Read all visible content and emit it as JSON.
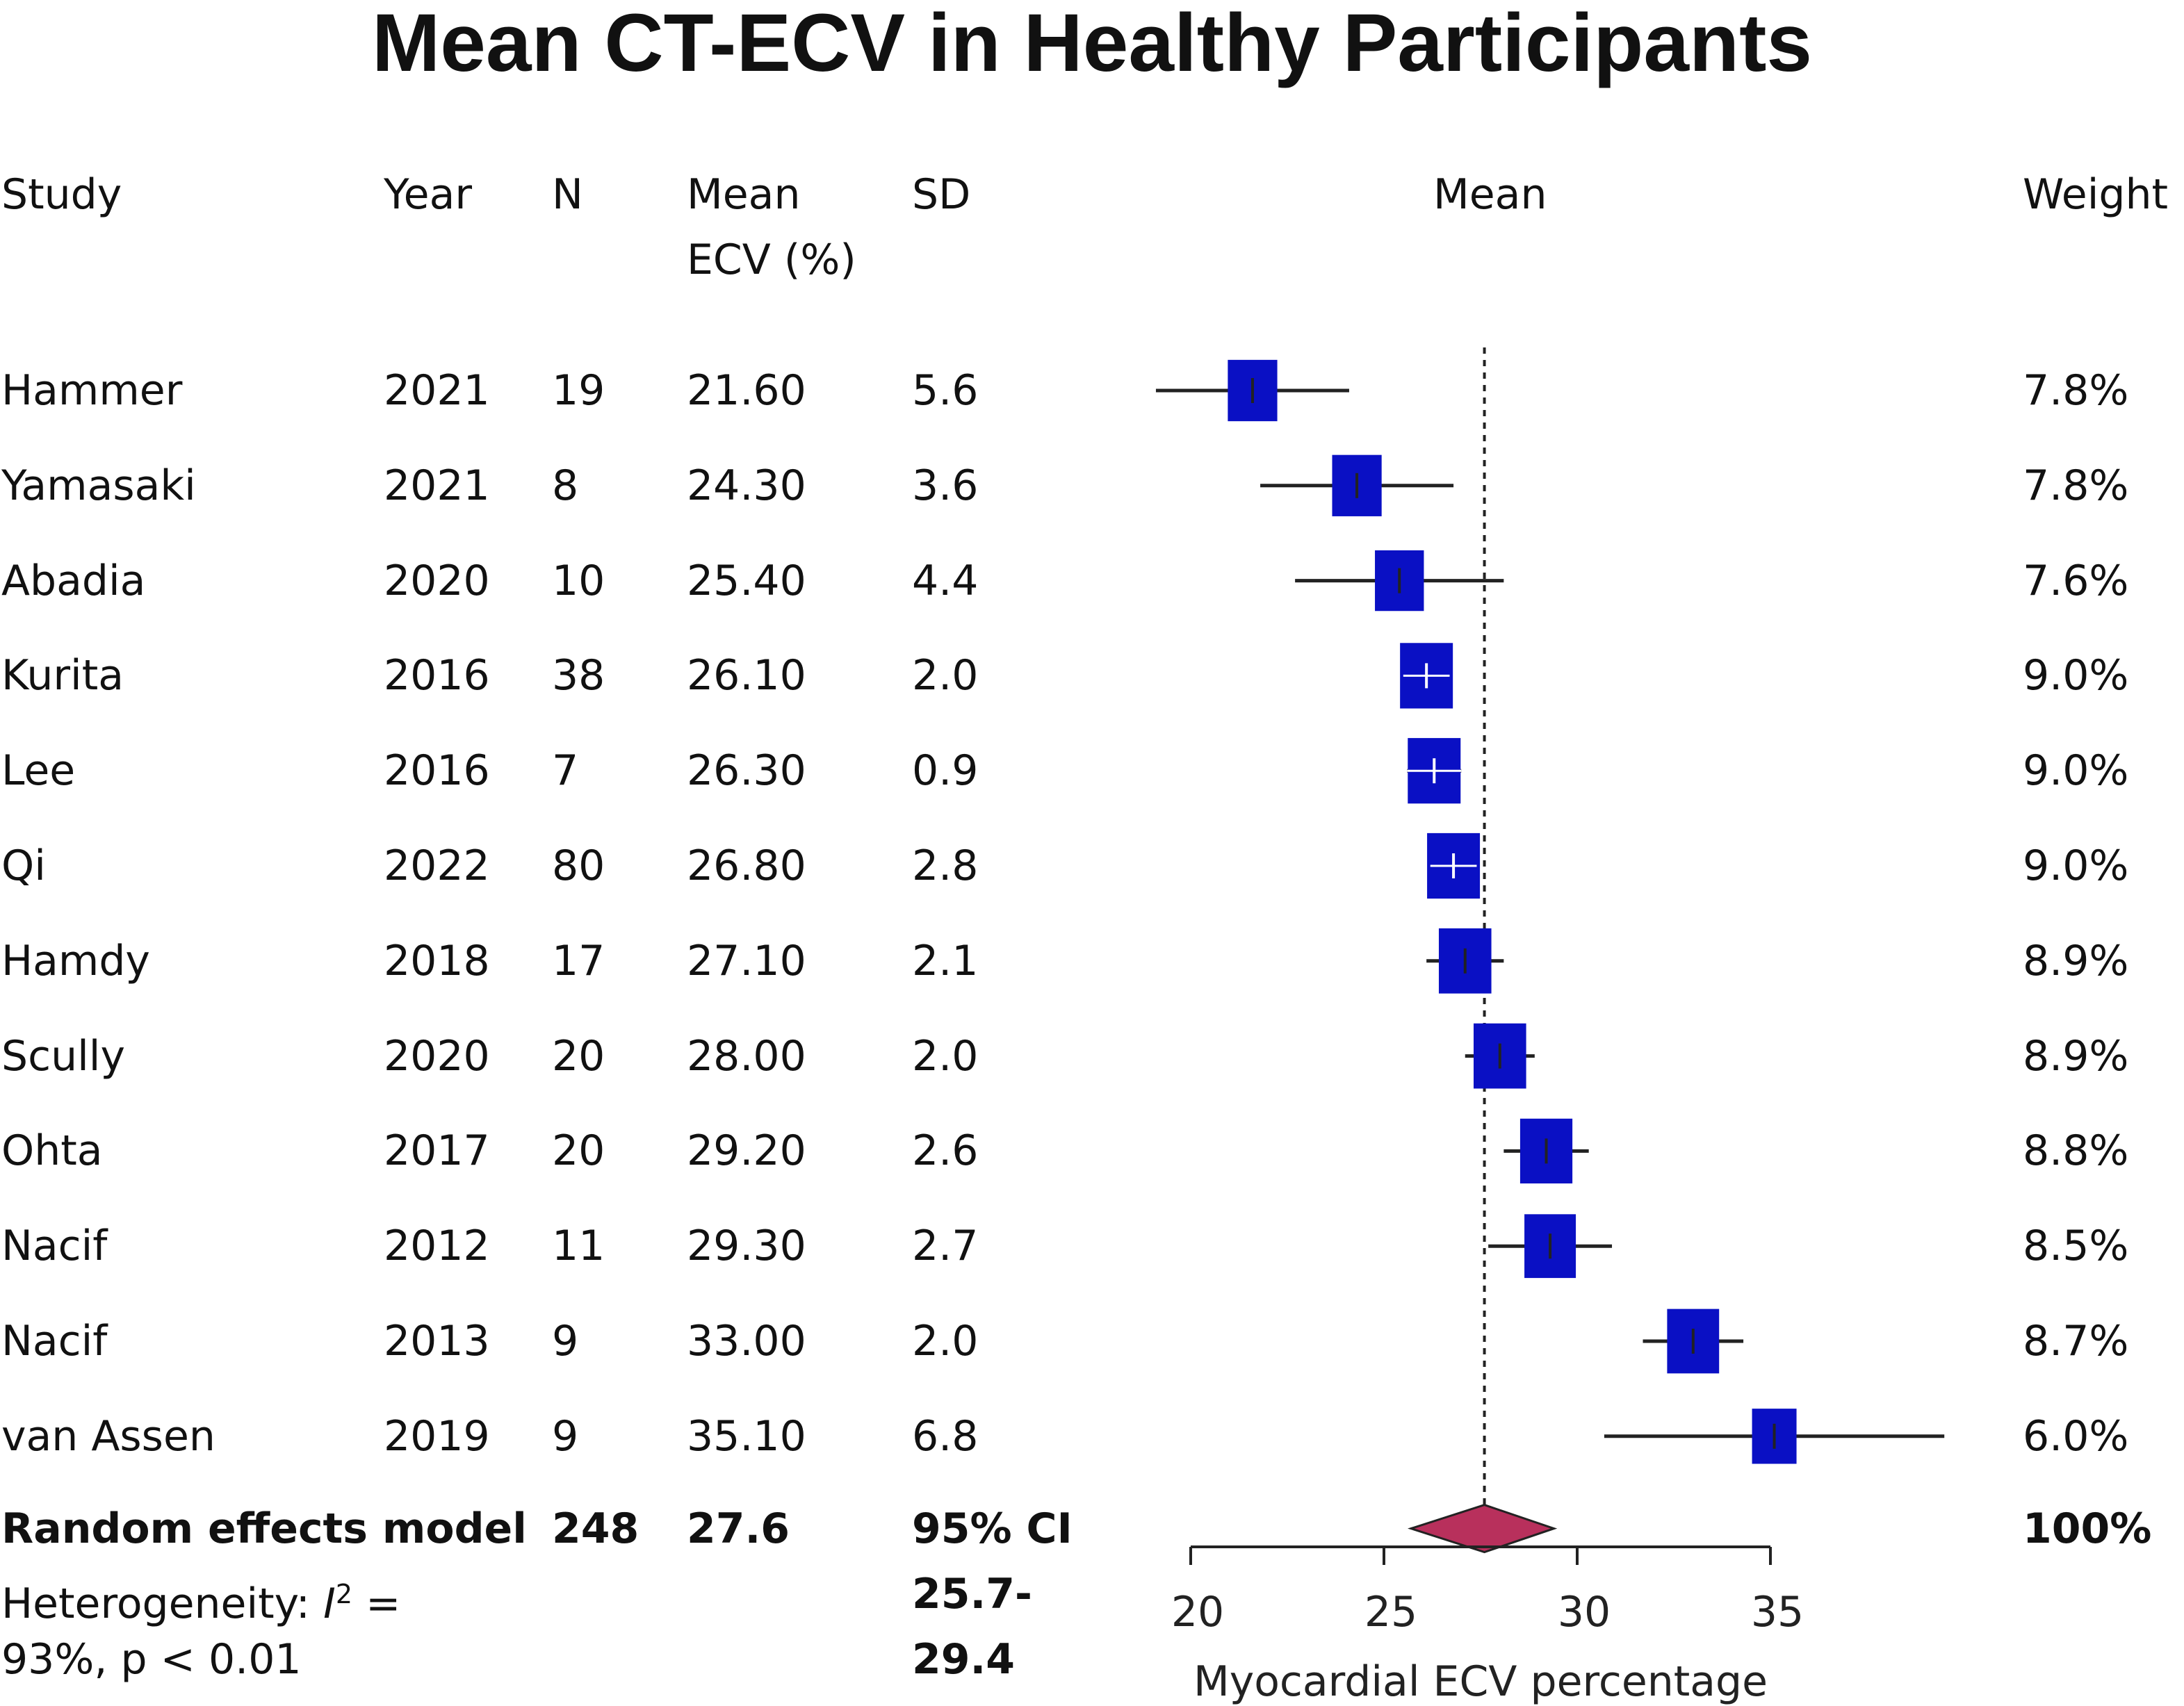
{
  "chart_data": {
    "type": "forest",
    "title": "Mean CT-ECV in Healthy Participants",
    "columns": {
      "study": "Study",
      "year": "Year",
      "n": "N",
      "mean_line1": "Mean",
      "mean_line2": "ECV (%)",
      "sd": "SD",
      "plot": "Mean",
      "weight": "Weight"
    },
    "studies": [
      {
        "study": "Hammer",
        "year": "2021",
        "n": "19",
        "mean_text": "21.60",
        "sd_text": "5.6",
        "weight_text": "7.8%",
        "mean": 21.6,
        "ci": [
          19.1,
          24.1
        ],
        "weight": 7.8
      },
      {
        "study": "Yamasaki",
        "year": "2021",
        "n": "8",
        "mean_text": "24.30",
        "sd_text": "3.6",
        "weight_text": "7.8%",
        "mean": 24.3,
        "ci": [
          21.8,
          26.8
        ],
        "weight": 7.8
      },
      {
        "study": "Abadia",
        "year": "2020",
        "n": "10",
        "mean_text": "25.40",
        "sd_text": "4.4",
        "weight_text": "7.6%",
        "mean": 25.4,
        "ci": [
          22.7,
          28.1
        ],
        "weight": 7.6
      },
      {
        "study": "Kurita",
        "year": "2016",
        "n": "38",
        "mean_text": "26.10",
        "sd_text": "2.0",
        "weight_text": "9.0%",
        "mean": 26.1,
        "ci": [
          25.5,
          26.7
        ],
        "weight": 9.0
      },
      {
        "study": "Lee",
        "year": "2016",
        "n": "7",
        "mean_text": "26.30",
        "sd_text": "0.9",
        "weight_text": "9.0%",
        "mean": 26.3,
        "ci": [
          25.6,
          27.0
        ],
        "weight": 9.0
      },
      {
        "study": "Qi",
        "year": "2022",
        "n": "80",
        "mean_text": "26.80",
        "sd_text": "2.8",
        "weight_text": "9.0%",
        "mean": 26.8,
        "ci": [
          26.2,
          27.4
        ],
        "weight": 9.0
      },
      {
        "study": "Hamdy",
        "year": "2018",
        "n": "17",
        "mean_text": "27.10",
        "sd_text": "2.1",
        "weight_text": "8.9%",
        "mean": 27.1,
        "ci": [
          26.1,
          28.1
        ],
        "weight": 8.9
      },
      {
        "study": "Scully",
        "year": "2020",
        "n": "20",
        "mean_text": "28.00",
        "sd_text": "2.0",
        "weight_text": "8.9%",
        "mean": 28.0,
        "ci": [
          27.1,
          28.9
        ],
        "weight": 8.9
      },
      {
        "study": "Ohta",
        "year": "2017",
        "n": "20",
        "mean_text": "29.20",
        "sd_text": "2.6",
        "weight_text": "8.8%",
        "mean": 29.2,
        "ci": [
          28.1,
          30.3
        ],
        "weight": 8.8
      },
      {
        "study": "Nacif",
        "year": "2012",
        "n": "11",
        "mean_text": "29.30",
        "sd_text": "2.7",
        "weight_text": "8.5%",
        "mean": 29.3,
        "ci": [
          27.7,
          30.9
        ],
        "weight": 8.5
      },
      {
        "study": "Nacif",
        "year": "2013",
        "n": "9",
        "mean_text": "33.00",
        "sd_text": "2.0",
        "weight_text": "8.7%",
        "mean": 33.0,
        "ci": [
          31.7,
          34.3
        ],
        "weight": 8.7
      },
      {
        "study": "van Assen",
        "year": "2019",
        "n": "9",
        "mean_text": "35.10",
        "sd_text": "6.8",
        "weight_text": "6.0%",
        "mean": 35.1,
        "ci": [
          30.7,
          39.5
        ],
        "weight": 6.0
      }
    ],
    "summary": {
      "label": "Random effects model",
      "n": "248",
      "mean_text": "27.6",
      "ci_label": "95% CI",
      "ci_line1": "25.7-",
      "ci_line2": "29.4",
      "weight_text": "100%",
      "mean": 27.6,
      "ci": [
        25.7,
        29.4
      ]
    },
    "heterogeneity": {
      "prefix": "Heterogeneity: ",
      "symbol": "I",
      "superscript": "2",
      "suffix": " =",
      "line2": "93%, p < 0.01"
    },
    "xaxis": {
      "label": "Myocardial ECV percentage",
      "ticks": [
        20,
        25,
        30,
        35
      ],
      "range": [
        20,
        35
      ]
    },
    "reference_line": 27.6,
    "colors": {
      "box": "#0a10c4",
      "diamond": "#b8305c",
      "line": "#222222"
    }
  }
}
